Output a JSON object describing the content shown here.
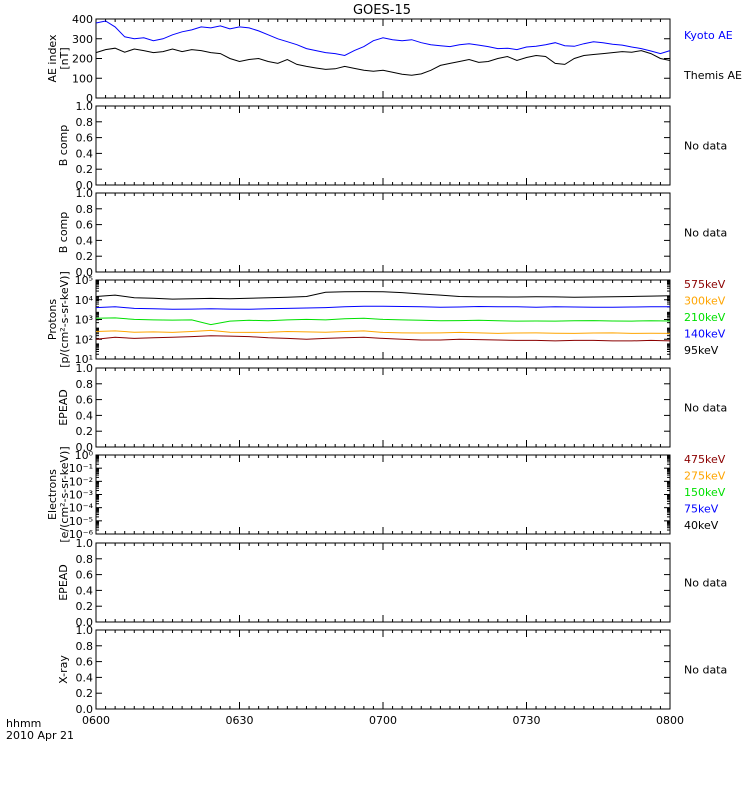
{
  "title": "GOES-15",
  "xaxis": {
    "label": "hhmm",
    "date": "2010 Apr 21",
    "ticks": [
      "0600",
      "0630",
      "0700",
      "0730",
      "0800"
    ],
    "range_min": [
      0,
      120
    ]
  },
  "colors": {
    "kyoto": "#0000ff",
    "themis": "#000000",
    "ch575": "#8b0000",
    "ch300": "#ffa500",
    "ch210": "#00e000",
    "ch140": "#0000ff",
    "ch95": "#000000"
  },
  "chart_data": [
    {
      "type": "line",
      "ylabel": "AE index [nT]",
      "ylim": [
        0,
        400
      ],
      "yticks": [
        "0",
        "100",
        "200",
        "300",
        "400"
      ],
      "legend": [
        "Kyoto AE",
        "Themis AE"
      ],
      "x": [
        0,
        2,
        4,
        6,
        8,
        10,
        12,
        14,
        16,
        18,
        20,
        22,
        24,
        26,
        28,
        30,
        32,
        34,
        36,
        38,
        40,
        42,
        44,
        46,
        48,
        50,
        52,
        54,
        56,
        58,
        60,
        62,
        64,
        66,
        68,
        70,
        72,
        74,
        76,
        78,
        80,
        82,
        84,
        86,
        88,
        90,
        92,
        94,
        96,
        98,
        100,
        102,
        104,
        106,
        108,
        110,
        112,
        114,
        116,
        118,
        120
      ],
      "series": [
        {
          "name": "Kyoto AE",
          "values": [
            380,
            390,
            360,
            310,
            300,
            305,
            290,
            300,
            320,
            335,
            345,
            360,
            355,
            365,
            350,
            360,
            355,
            340,
            320,
            300,
            285,
            270,
            250,
            240,
            230,
            225,
            215,
            240,
            260,
            290,
            305,
            295,
            290,
            295,
            280,
            270,
            265,
            260,
            270,
            275,
            268,
            260,
            250,
            252,
            245,
            258,
            262,
            270,
            280,
            265,
            262,
            275,
            285,
            280,
            272,
            268,
            258,
            250,
            238,
            225,
            240
          ]
        },
        {
          "name": "Themis AE",
          "values": [
            230,
            245,
            252,
            232,
            248,
            240,
            230,
            235,
            248,
            235,
            245,
            240,
            230,
            225,
            200,
            185,
            195,
            200,
            185,
            175,
            195,
            170,
            160,
            152,
            145,
            148,
            160,
            150,
            140,
            135,
            140,
            130,
            120,
            115,
            122,
            140,
            165,
            175,
            185,
            195,
            180,
            185,
            200,
            210,
            190,
            205,
            215,
            210,
            175,
            170,
            200,
            215,
            220,
            225,
            230,
            235,
            232,
            240,
            225,
            200,
            190
          ]
        }
      ]
    },
    {
      "type": "line",
      "ylabel": "B comp",
      "ylim": [
        0,
        1
      ],
      "yticks": [
        "0.0",
        "0.2",
        "0.4",
        "0.6",
        "0.8",
        "1.0"
      ],
      "note": "No data",
      "series": []
    },
    {
      "type": "line",
      "ylabel": "B comp",
      "ylim": [
        0,
        1
      ],
      "yticks": [
        "0.0",
        "0.2",
        "0.4",
        "0.6",
        "0.8",
        "1.0"
      ],
      "note": "No data",
      "series": []
    },
    {
      "type": "line",
      "ylabel": "Protons [p/(cm²-s-sr-keV)]",
      "yscale": "log",
      "ylim": [
        1,
        100000
      ],
      "yticks": [
        "10¹",
        "10²",
        "10³",
        "10⁴",
        "10⁵"
      ],
      "legend": [
        "575keV",
        "300keV",
        "210keV",
        "140keV",
        "95keV"
      ],
      "x": [
        0,
        4,
        8,
        12,
        16,
        20,
        24,
        28,
        32,
        36,
        40,
        44,
        48,
        52,
        56,
        60,
        64,
        68,
        72,
        76,
        80,
        84,
        88,
        92,
        96,
        100,
        104,
        108,
        112,
        116,
        120
      ],
      "series": [
        {
          "name": "95keV",
          "values": [
            9000,
            11000,
            7500,
            7000,
            6200,
            6500,
            6800,
            6500,
            7000,
            7500,
            8000,
            9000,
            17000,
            18000,
            18500,
            18000,
            16000,
            13000,
            11000,
            9000,
            8500,
            8500,
            8400,
            8600,
            8500,
            8200,
            8400,
            8600,
            9000,
            9600,
            10000
          ]
        },
        {
          "name": "140keV",
          "values": [
            1800,
            2000,
            1600,
            1500,
            1400,
            1450,
            1500,
            1450,
            1400,
            1500,
            1600,
            1700,
            1800,
            2000,
            2200,
            2200,
            2100,
            2000,
            1900,
            1950,
            2100,
            2050,
            2000,
            1900,
            2000,
            1950,
            1900,
            1900,
            1950,
            2000,
            2000
          ]
        },
        {
          "name": "210keV",
          "values": [
            380,
            400,
            320,
            300,
            290,
            300,
            150,
            250,
            280,
            260,
            300,
            320,
            300,
            350,
            380,
            320,
            300,
            280,
            260,
            270,
            280,
            260,
            250,
            255,
            250,
            260,
            270,
            255,
            250,
            260,
            255
          ]
        },
        {
          "name": "300keV",
          "values": [
            55,
            60,
            50,
            52,
            48,
            55,
            65,
            50,
            48,
            50,
            55,
            52,
            50,
            55,
            60,
            48,
            45,
            44,
            45,
            48,
            45,
            42,
            44,
            45,
            43,
            42,
            44,
            45,
            42,
            43,
            42
          ]
        },
        {
          "name": "575keV",
          "values": [
            18,
            24,
            20,
            22,
            24,
            26,
            30,
            28,
            26,
            22,
            20,
            18,
            20,
            22,
            24,
            20,
            18,
            16,
            16,
            18,
            17,
            16,
            15,
            15,
            14,
            15,
            15,
            14,
            14,
            15,
            14
          ]
        }
      ]
    },
    {
      "type": "line",
      "ylabel": "EPEAD",
      "ylim": [
        0,
        1
      ],
      "yticks": [
        "0.0",
        "0.2",
        "0.4",
        "0.6",
        "0.8",
        "1.0"
      ],
      "note": "No data",
      "series": []
    },
    {
      "type": "line",
      "ylabel": "Electrons [e/(cm²-s-sr-keV)]",
      "yscale": "log",
      "ylim": [
        1e-06,
        1
      ],
      "yticks": [
        "10⁻⁶",
        "10⁻⁵",
        "10⁻⁴",
        "10⁻³",
        "10⁻²",
        "10⁻¹",
        "10⁰"
      ],
      "legend": [
        "475keV",
        "275keV",
        "150keV",
        "75keV",
        "40keV"
      ],
      "series": []
    },
    {
      "type": "line",
      "ylabel": "EPEAD",
      "ylim": [
        0,
        1
      ],
      "yticks": [
        "0.0",
        "0.2",
        "0.4",
        "0.6",
        "0.8",
        "1.0"
      ],
      "note": "No data",
      "series": []
    },
    {
      "type": "line",
      "ylabel": "X-ray",
      "ylim": [
        0,
        1
      ],
      "yticks": [
        "0.0",
        "0.2",
        "0.4",
        "0.6",
        "0.8",
        "1.0"
      ],
      "note": "No data",
      "series": []
    }
  ]
}
